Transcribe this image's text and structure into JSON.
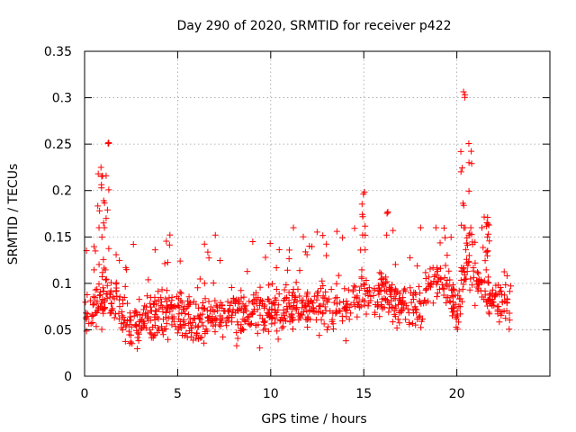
{
  "chart_data": {
    "type": "scatter",
    "title": "Day 290 of 2020, SRMTID for receiver p422",
    "xlabel": "GPS time / hours",
    "ylabel": "SRMTID / TECUs",
    "xlim": [
      0,
      25
    ],
    "ylim": [
      0,
      0.35
    ],
    "xticks": [
      0,
      5,
      10,
      15,
      20
    ],
    "xtick_labels": [
      "0",
      "5",
      "10",
      "15",
      "20"
    ],
    "yticks": [
      0,
      0.05,
      0.1,
      0.15,
      0.2,
      0.25,
      0.3,
      0.35
    ],
    "ytick_labels": [
      "0",
      "0.05",
      "0.1",
      "0.15",
      "0.2",
      "0.25",
      "0.3",
      "0.35"
    ],
    "grid": true,
    "marker": "+",
    "marker_color": "#ff0000",
    "sampling": {
      "x_start": 0.0,
      "x_end": 22.9,
      "point_count": 1100
    },
    "baseline": [
      {
        "x": 0.0,
        "y": 0.07
      },
      {
        "x": 0.8,
        "y": 0.08
      },
      {
        "x": 1.5,
        "y": 0.09
      },
      {
        "x": 2.5,
        "y": 0.05
      },
      {
        "x": 3.5,
        "y": 0.065
      },
      {
        "x": 5.0,
        "y": 0.07
      },
      {
        "x": 6.0,
        "y": 0.06
      },
      {
        "x": 8.0,
        "y": 0.068
      },
      {
        "x": 10.0,
        "y": 0.07
      },
      {
        "x": 12.0,
        "y": 0.075
      },
      {
        "x": 14.0,
        "y": 0.075
      },
      {
        "x": 15.0,
        "y": 0.09
      },
      {
        "x": 16.5,
        "y": 0.085
      },
      {
        "x": 17.5,
        "y": 0.07
      },
      {
        "x": 18.5,
        "y": 0.095
      },
      {
        "x": 19.5,
        "y": 0.1
      },
      {
        "x": 20.0,
        "y": 0.07
      },
      {
        "x": 20.5,
        "y": 0.12
      },
      {
        "x": 21.0,
        "y": 0.1
      },
      {
        "x": 22.0,
        "y": 0.08
      },
      {
        "x": 22.9,
        "y": 0.08
      }
    ],
    "spread": 0.025,
    "bursts": [
      {
        "x_from": 0.7,
        "x_to": 1.4,
        "y_min": 0.1,
        "y_max": 0.225
      },
      {
        "x_from": 1.25,
        "x_to": 1.3,
        "y_min": 0.25,
        "y_max": 0.255
      },
      {
        "x_from": 14.9,
        "x_to": 15.2,
        "y_min": 0.13,
        "y_max": 0.2
      },
      {
        "x_from": 16.2,
        "x_to": 16.3,
        "y_min": 0.175,
        "y_max": 0.18
      },
      {
        "x_from": 20.2,
        "x_to": 20.4,
        "y_min": 0.16,
        "y_max": 0.27
      },
      {
        "x_from": 20.35,
        "x_to": 20.45,
        "y_min": 0.3,
        "y_max": 0.307
      },
      {
        "x_from": 20.5,
        "x_to": 20.9,
        "y_min": 0.14,
        "y_max": 0.26
      },
      {
        "x_from": 21.4,
        "x_to": 21.8,
        "y_min": 0.12,
        "y_max": 0.175
      }
    ],
    "min_observed": 0.014,
    "max_observed": 0.307
  }
}
